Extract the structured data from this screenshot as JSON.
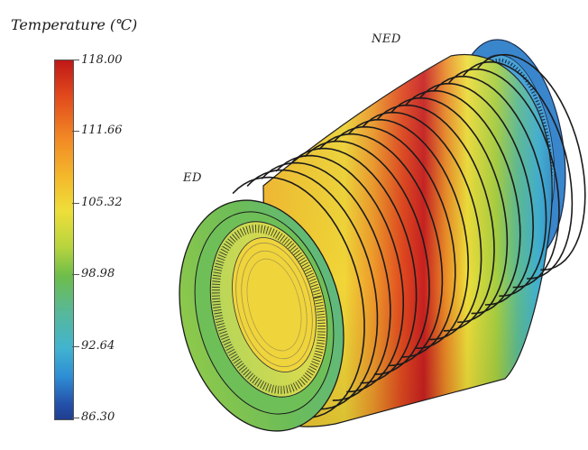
{
  "legend": {
    "title": "Temperature (℃)",
    "ticks": [
      "118.00",
      "111.66",
      "105.32",
      "98.98",
      "92.64",
      "86.30"
    ]
  },
  "labels": {
    "drive_end": "ED",
    "non_drive_end": "NED"
  },
  "colors": {
    "max": "#c01818",
    "high": "#f28a25",
    "mid_high": "#eede3a",
    "mid": "#6ebd4a",
    "mid_low": "#58b898",
    "low": "#42b4cf",
    "min": "#1f3d8f"
  }
}
